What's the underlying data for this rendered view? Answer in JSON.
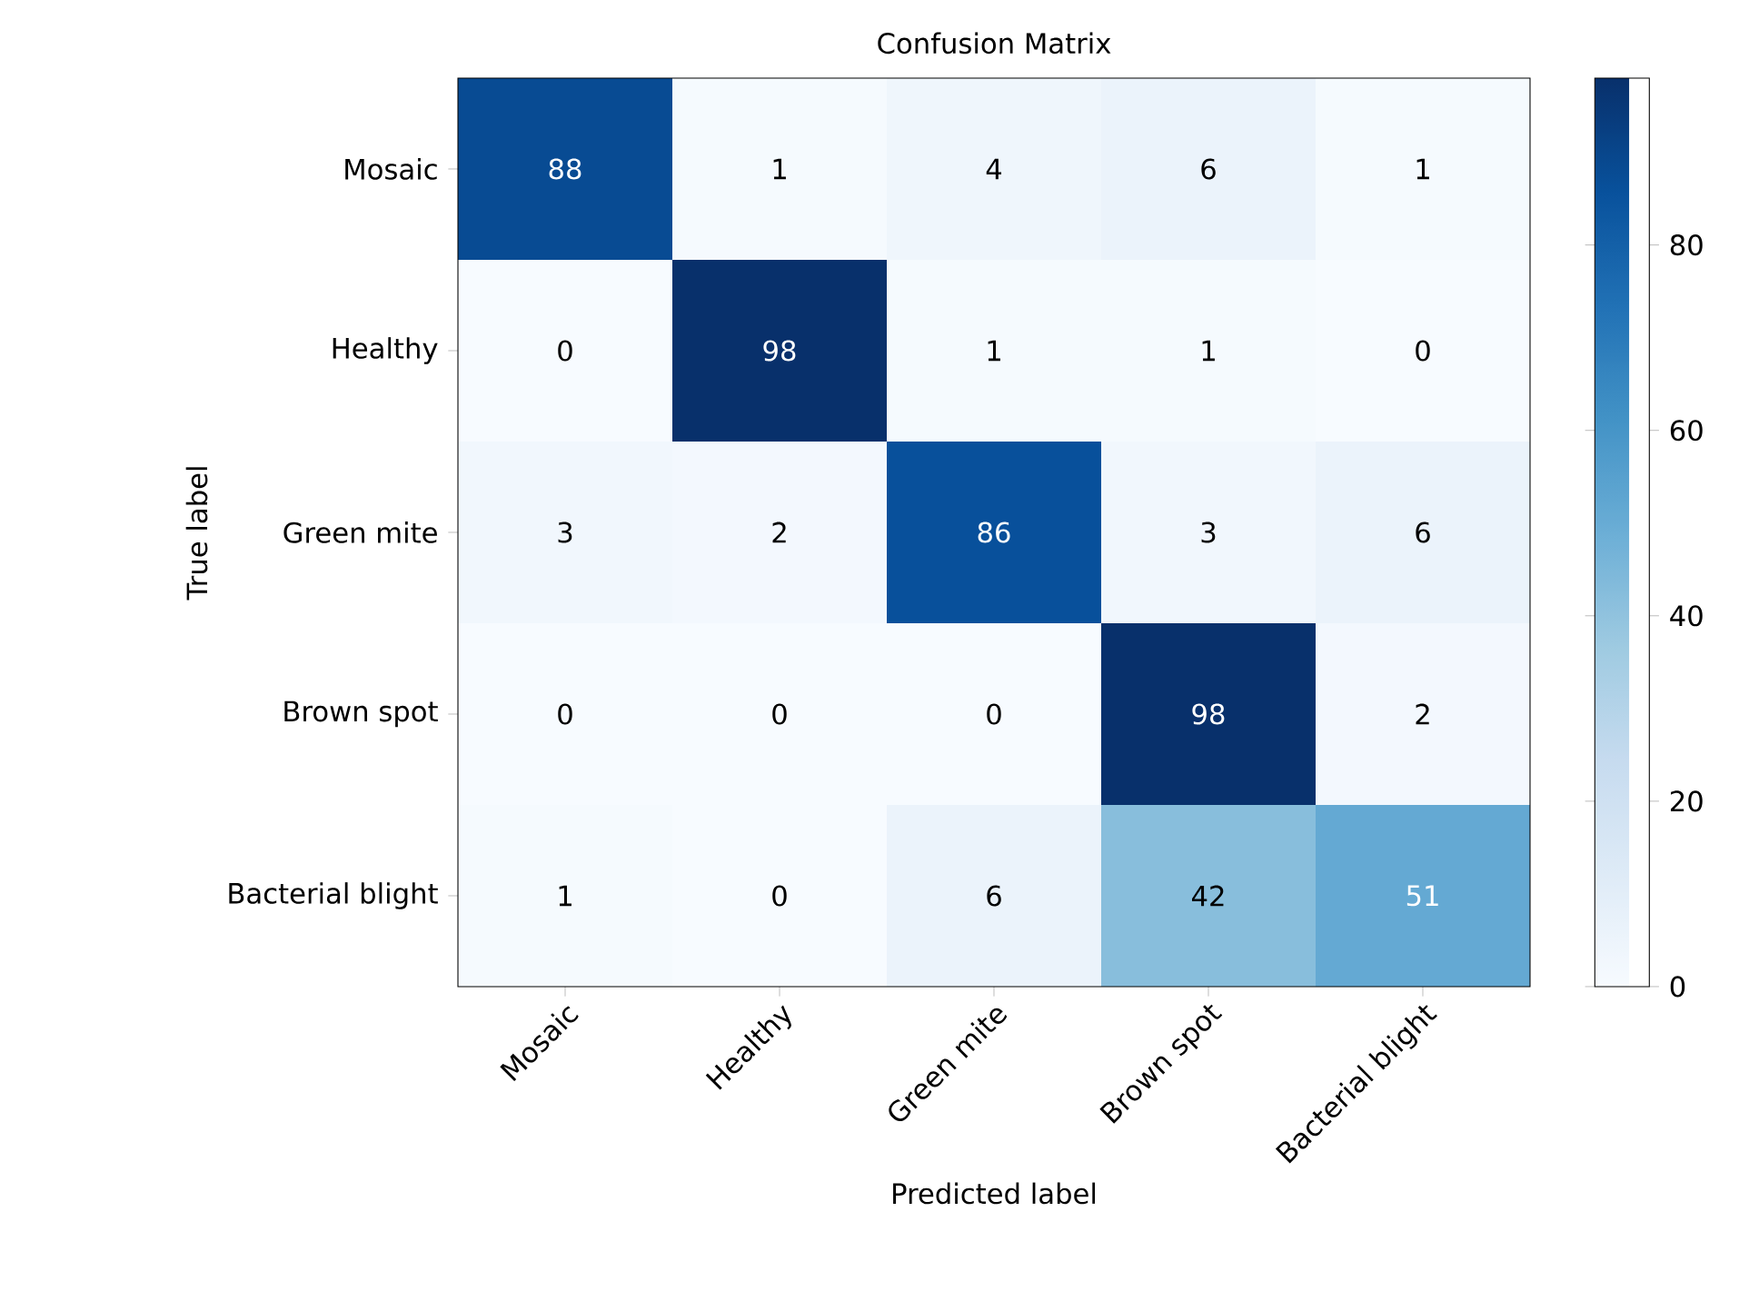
{
  "chart_data": {
    "type": "heatmap",
    "title": "Confusion Matrix",
    "xlabel": "Predicted label",
    "ylabel": "True label",
    "categories": [
      "Mosaic",
      "Healthy",
      "Green mite",
      "Brown spot",
      "Bacterial blight"
    ],
    "y_categories": [
      "Mosaic",
      "Healthy",
      "Green mite",
      "Brown spot",
      "Bacterial blight"
    ],
    "cells": [
      [
        88,
        1,
        4,
        6,
        1
      ],
      [
        0,
        98,
        1,
        1,
        0
      ],
      [
        3,
        2,
        86,
        3,
        6
      ],
      [
        0,
        0,
        0,
        98,
        2
      ],
      [
        1,
        0,
        6,
        42,
        51
      ]
    ],
    "clim": [
      0,
      98
    ],
    "cticks": [
      0,
      20,
      40,
      60,
      80
    ],
    "data_labels": true
  }
}
